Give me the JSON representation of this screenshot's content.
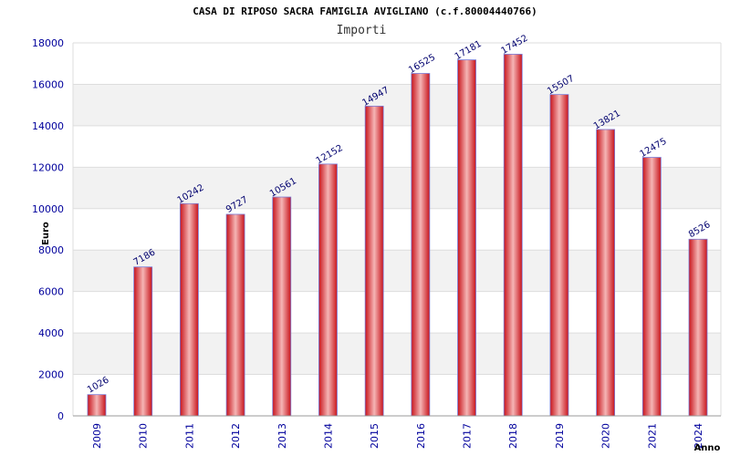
{
  "chart_data": {
    "type": "bar",
    "title": "CASA DI RIPOSO SACRA FAMIGLIA AVIGLIANO (c.f.80004440766)",
    "subtitle": "Importi",
    "xlabel": "Anno",
    "ylabel": "Euro",
    "categories": [
      "2009",
      "2010",
      "2011",
      "2012",
      "2013",
      "2014",
      "2015",
      "2016",
      "2017",
      "2018",
      "2019",
      "2020",
      "2021",
      "2024"
    ],
    "values": [
      1026,
      7186,
      10242,
      9727,
      10561,
      12152,
      14947,
      16525,
      17181,
      17452,
      15507,
      13821,
      12475,
      8526
    ],
    "ylim": [
      0,
      18000
    ],
    "yticks": [
      0,
      2000,
      4000,
      6000,
      8000,
      10000,
      12000,
      14000,
      16000,
      18000
    ],
    "grid": true,
    "colors": {
      "bar": "#e8232a",
      "bar_highlight": "#f5b5b5",
      "bar_edge": "#7a7ad6",
      "tick_text": "#00009c",
      "band": "#f2f2f2"
    }
  }
}
